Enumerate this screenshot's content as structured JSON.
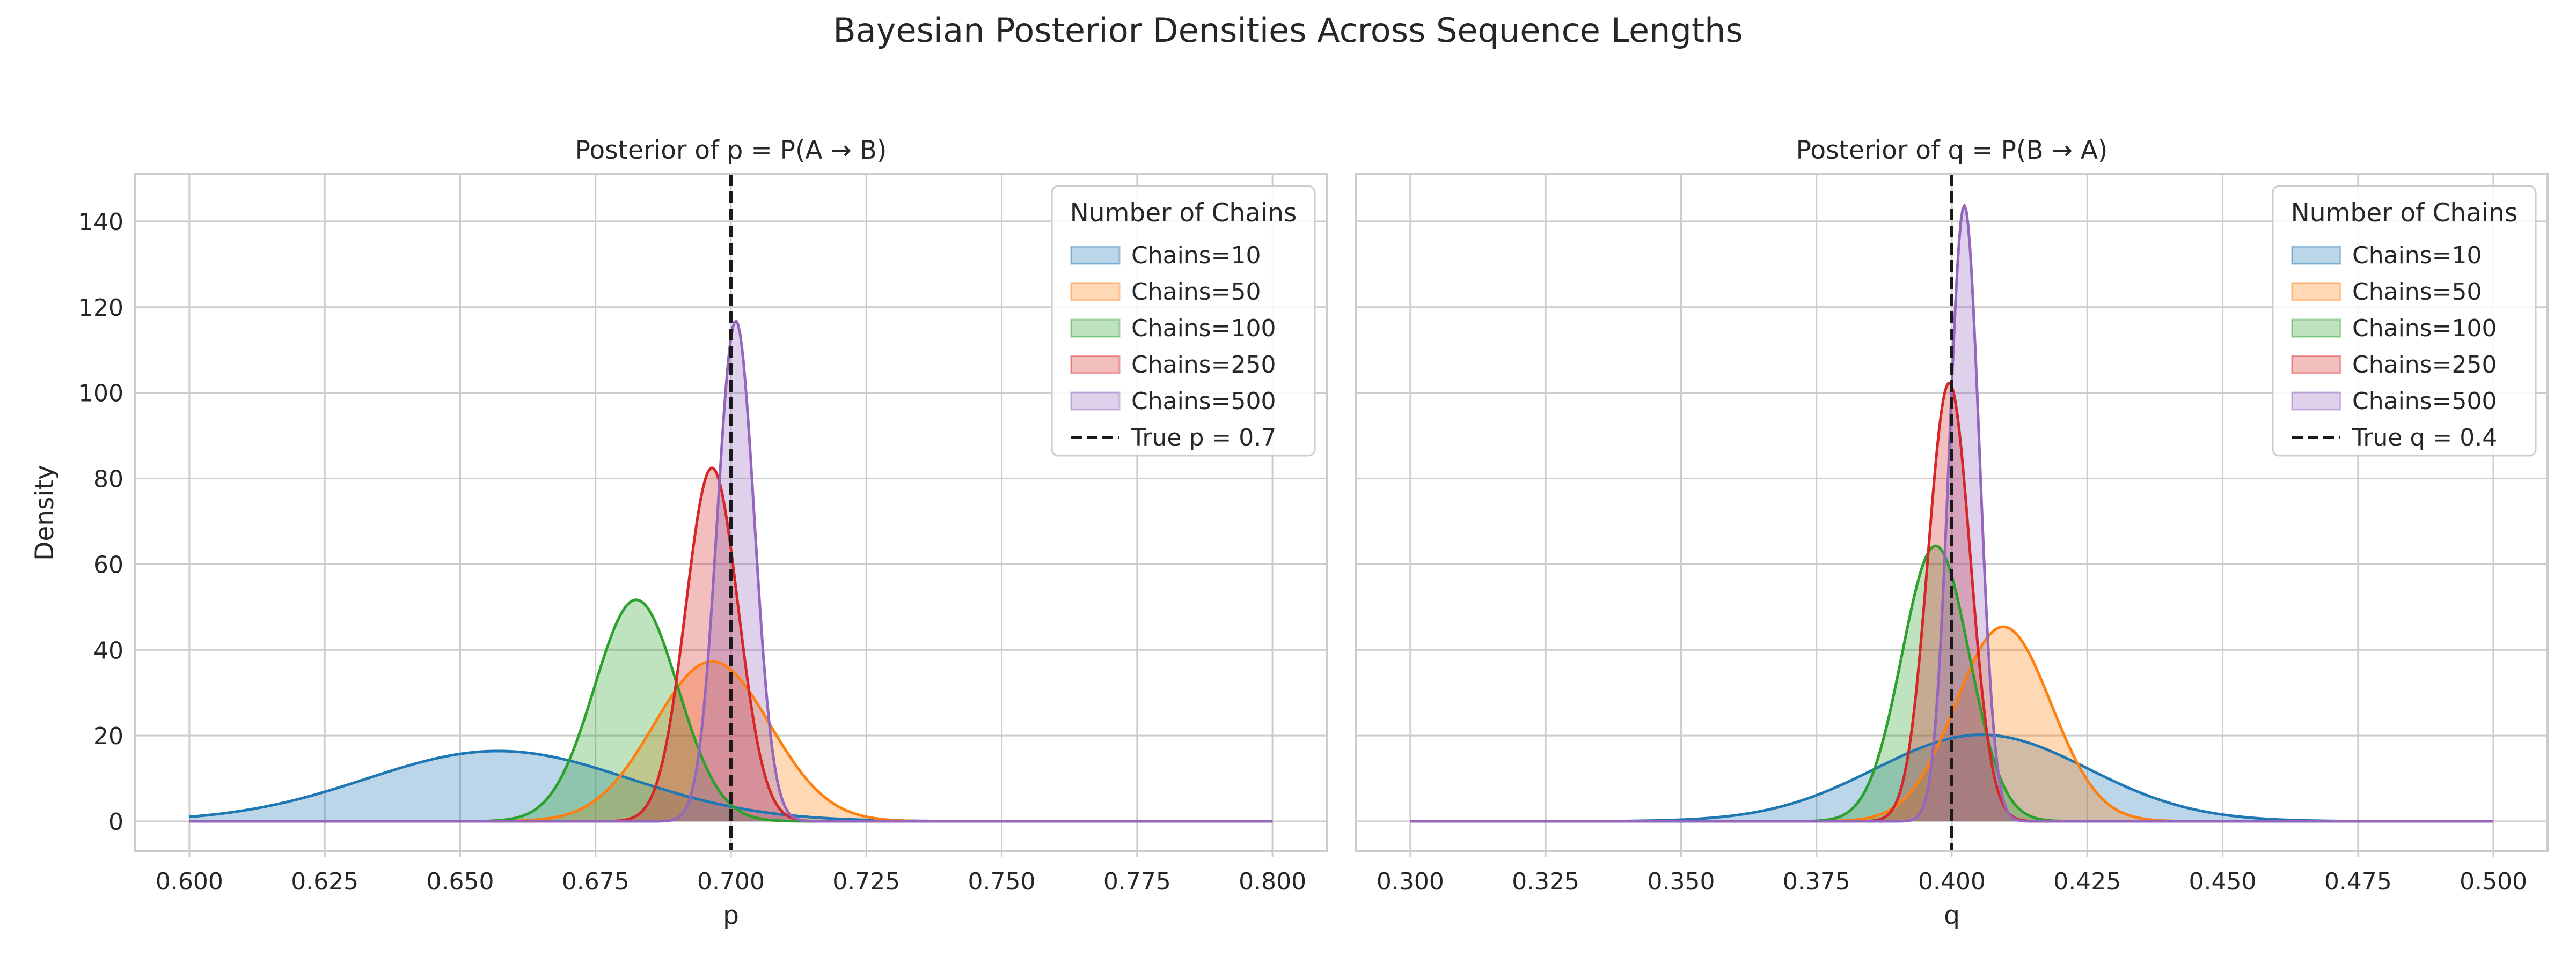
{
  "figure": {
    "suptitle": "Bayesian Posterior Densities Across Sequence Lengths"
  },
  "chart_data": [
    {
      "type": "area",
      "title": "Posterior of p = P(A → B)",
      "xlabel": "p",
      "ylabel": "Density",
      "xlim": [
        0.59,
        0.81
      ],
      "ylim": [
        -7,
        151
      ],
      "xticks": [
        0.6,
        0.625,
        0.65,
        0.675,
        0.7,
        0.725,
        0.75,
        0.775,
        0.8
      ],
      "xtick_labels": [
        "0.600",
        "0.625",
        "0.650",
        "0.675",
        "0.700",
        "0.725",
        "0.750",
        "0.775",
        "0.800"
      ],
      "yticks": [
        0,
        20,
        40,
        60,
        80,
        100,
        120,
        140
      ],
      "ytick_labels": [
        "0",
        "20",
        "40",
        "60",
        "80",
        "100",
        "120",
        "140"
      ],
      "x_domain": [
        0.6,
        0.8
      ],
      "grid": true,
      "legend": {
        "title": "Number of Chains",
        "placement": "top-right"
      },
      "series": [
        {
          "name": "Chains=10",
          "color": "#1f77b4",
          "peak_x": 0.657,
          "peak_density": 16.4,
          "sd": 0.0243
        },
        {
          "name": "Chains=50",
          "color": "#ff7f0e",
          "peak_x": 0.6965,
          "peak_density": 37.3,
          "sd": 0.0107
        },
        {
          "name": "Chains=100",
          "color": "#2ca02c",
          "peak_x": 0.6825,
          "peak_density": 51.7,
          "sd": 0.0077
        },
        {
          "name": "Chains=250",
          "color": "#d62728",
          "peak_x": 0.6965,
          "peak_density": 82.5,
          "sd": 0.00484
        },
        {
          "name": "Chains=500",
          "color": "#9467bd",
          "peak_x": 0.7009,
          "peak_density": 116.8,
          "sd": 0.00342
        }
      ],
      "reference_line": {
        "label": "True p = 0.7",
        "x": 0.7,
        "color": "#1a1a1a",
        "style": "dashed"
      }
    },
    {
      "type": "area",
      "title": "Posterior of q = P(B → A)",
      "xlabel": "q",
      "ylabel": "",
      "xlim": [
        0.29,
        0.51
      ],
      "ylim": [
        -7,
        151
      ],
      "xticks": [
        0.3,
        0.325,
        0.35,
        0.375,
        0.4,
        0.425,
        0.45,
        0.475,
        0.5
      ],
      "xtick_labels": [
        "0.300",
        "0.325",
        "0.350",
        "0.375",
        "0.400",
        "0.425",
        "0.450",
        "0.475",
        "0.500"
      ],
      "yticks": [
        0,
        20,
        40,
        60,
        80,
        100,
        120,
        140
      ],
      "ytick_labels": [],
      "x_domain": [
        0.3,
        0.5
      ],
      "grid": true,
      "legend": {
        "title": "Number of Chains",
        "placement": "top-right"
      },
      "series": [
        {
          "name": "Chains=10",
          "color": "#1f77b4",
          "peak_x": 0.4055,
          "peak_density": 20.2,
          "sd": 0.0197
        },
        {
          "name": "Chains=50",
          "color": "#ff7f0e",
          "peak_x": 0.4095,
          "peak_density": 45.4,
          "sd": 0.0088
        },
        {
          "name": "Chains=100",
          "color": "#2ca02c",
          "peak_x": 0.397,
          "peak_density": 64.3,
          "sd": 0.0062
        },
        {
          "name": "Chains=250",
          "color": "#d62728",
          "peak_x": 0.3995,
          "peak_density": 102.3,
          "sd": 0.0039
        },
        {
          "name": "Chains=500",
          "color": "#9467bd",
          "peak_x": 0.4023,
          "peak_density": 143.7,
          "sd": 0.00278
        }
      ],
      "reference_line": {
        "label": "True q = 0.4",
        "x": 0.4,
        "color": "#1a1a1a",
        "style": "dashed"
      }
    }
  ]
}
